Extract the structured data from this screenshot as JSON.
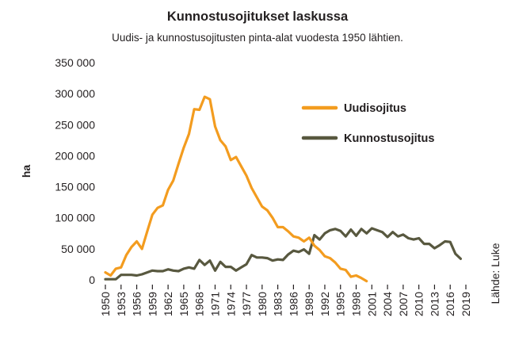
{
  "chart_data": {
    "type": "line",
    "title": "Kunnostusojitukset laskussa",
    "subtitle": "Uudis- ja kunnostusojitusten pinta-alat vuodesta 1950 lähtien.",
    "ylabel": "ha",
    "source": "Lähde: Luke",
    "ylim": [
      0,
      350000
    ],
    "y_ticks": [
      0,
      50000,
      100000,
      150000,
      200000,
      250000,
      300000,
      350000
    ],
    "y_tick_labels": [
      "0",
      "50 000",
      "100 000",
      "150 000",
      "200 000",
      "250 000",
      "300 000",
      "350 000"
    ],
    "xlim": [
      1950,
      2019
    ],
    "x_ticks": [
      1950,
      1953,
      1956,
      1959,
      1962,
      1965,
      1968,
      1971,
      1974,
      1977,
      1980,
      1983,
      1986,
      1989,
      1992,
      1995,
      1998,
      2001,
      2004,
      2007,
      2010,
      2013,
      2016,
      2019
    ],
    "legend_position": "right",
    "grid": false,
    "series": [
      {
        "name": "Uudisojitus",
        "color": "#f39c1f",
        "x": [
          1950,
          1951,
          1952,
          1953,
          1954,
          1955,
          1956,
          1957,
          1958,
          1959,
          1960,
          1961,
          1962,
          1963,
          1964,
          1965,
          1966,
          1967,
          1968,
          1969,
          1970,
          1971,
          1972,
          1973,
          1974,
          1975,
          1976,
          1977,
          1978,
          1979,
          1980,
          1981,
          1982,
          1983,
          1984,
          1985,
          1986,
          1987,
          1988,
          1989,
          1990,
          1991,
          1992,
          1993,
          1994,
          1995,
          1996,
          1997,
          1998,
          1999,
          2000
        ],
        "values": [
          12000,
          7000,
          18000,
          20000,
          40000,
          53000,
          62000,
          50000,
          78000,
          105000,
          116000,
          120000,
          145000,
          160000,
          187000,
          213000,
          235000,
          275000,
          274000,
          295000,
          291000,
          247000,
          225000,
          215000,
          193000,
          198000,
          183000,
          168000,
          148000,
          133000,
          118000,
          112000,
          100000,
          85000,
          85000,
          78000,
          70000,
          68000,
          62000,
          68000,
          55000,
          48000,
          38000,
          35000,
          28000,
          18000,
          16000,
          5000,
          7000,
          3000,
          -2000
        ]
      },
      {
        "name": "Kunnostusojitus",
        "color": "#58583f",
        "x": [
          1950,
          1951,
          1952,
          1953,
          1954,
          1955,
          1956,
          1957,
          1958,
          1959,
          1960,
          1961,
          1962,
          1963,
          1964,
          1965,
          1966,
          1967,
          1968,
          1969,
          1970,
          1971,
          1972,
          1973,
          1974,
          1975,
          1976,
          1977,
          1978,
          1979,
          1980,
          1981,
          1982,
          1983,
          1984,
          1985,
          1986,
          1987,
          1988,
          1989,
          1990,
          1991,
          1992,
          1993,
          1994,
          1995,
          1996,
          1997,
          1998,
          1999,
          2000,
          2001,
          2002,
          2003,
          2004,
          2005,
          2006,
          2007,
          2008,
          2009,
          2010,
          2011,
          2012,
          2013,
          2014,
          2015,
          2016,
          2017,
          2018
        ],
        "values": [
          1000,
          1000,
          1000,
          8000,
          8000,
          8000,
          7000,
          9000,
          12000,
          15000,
          14000,
          14000,
          17000,
          15000,
          14000,
          18000,
          20000,
          18000,
          32000,
          24000,
          31000,
          15000,
          29000,
          21000,
          21000,
          15000,
          20000,
          25000,
          40000,
          36000,
          36000,
          35000,
          31000,
          33000,
          32000,
          41000,
          47000,
          45000,
          49000,
          42000,
          72000,
          65000,
          75000,
          80000,
          82000,
          79000,
          70000,
          81000,
          71000,
          82000,
          75000,
          83000,
          80000,
          77000,
          69000,
          77000,
          70000,
          73000,
          67000,
          65000,
          67000,
          58000,
          58000,
          51000,
          56000,
          62000,
          61000,
          42000,
          34000
        ]
      }
    ]
  }
}
